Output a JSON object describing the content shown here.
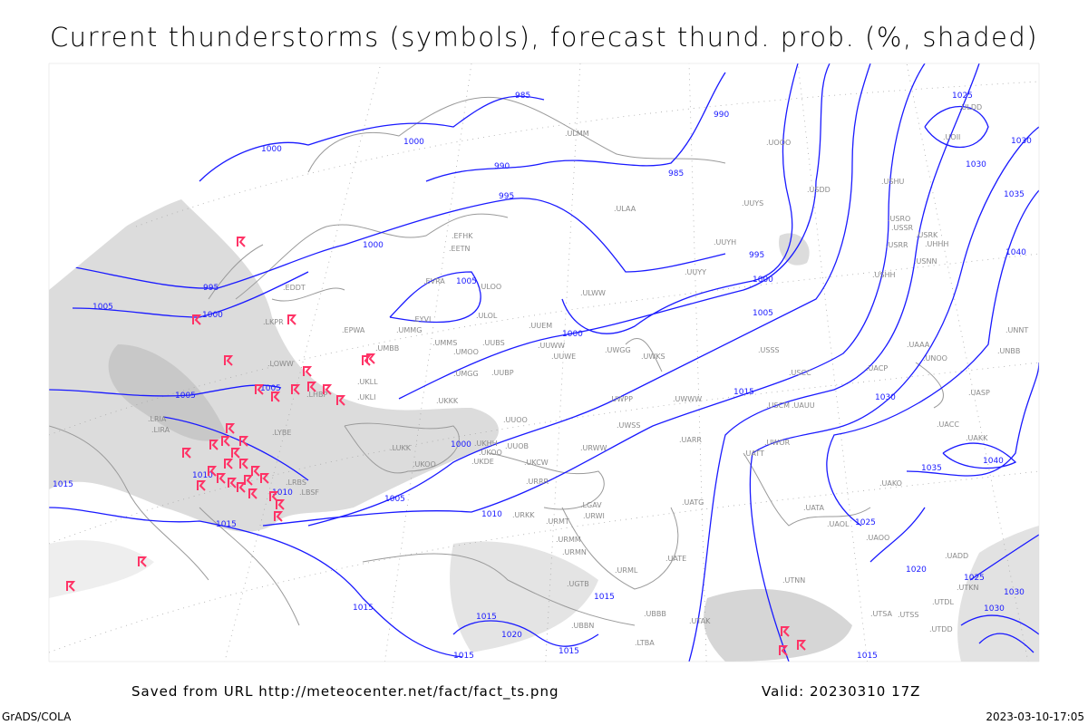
{
  "title": "Current thunderstorms (symbols), forecast thund. prob. (%, shaded)",
  "footer": {
    "source": "Saved from URL http://meteocenter.net/fact/fact_ts.png",
    "valid": "Valid: 20230310 17Z",
    "software": "GrADS/COLA",
    "timestamp": "2023-03-10-17:05"
  },
  "colors": {
    "isobar": "#1a1aff",
    "thunderstorm": "#ff3366",
    "shading": "#d9d9d9",
    "coastline": "#9a9a9a"
  },
  "isobar_labels": [
    "985",
    "990",
    "985",
    "1000",
    "990",
    "995",
    "1000",
    "1000",
    "995",
    "1005",
    "1000",
    "995",
    "1000",
    "1005",
    "1000",
    "1005",
    "1005",
    "1005",
    "1000",
    "1005",
    "1010",
    "1010",
    "1010",
    "1015",
    "1015",
    "1015",
    "1020",
    "1025",
    "1030",
    "1035",
    "1040",
    "1035",
    "1040",
    "1030",
    "1030",
    "1025",
    "1015",
    "1020",
    "1015",
    "1015",
    "1015",
    "1015",
    "1025",
    "1030",
    "1030",
    "1015"
  ],
  "stations": [
    "ULAA",
    "UUYH",
    "UUYY",
    "ULWW",
    "EVRA",
    "ULOO",
    "ULOL",
    "EYVI",
    "UMMG",
    "EPWA",
    "UMBB",
    "UMMS",
    "UMOO",
    "UUBS",
    "UUEM",
    "UUWW",
    "UWGG",
    "UWKS",
    "UMGG",
    "UUBP",
    "UKLL",
    "UKLI",
    "UKKK",
    "UUOO",
    "UUOB",
    "UKHH",
    "UKOO",
    "UKDE",
    "UKCW",
    "URRR",
    "LUKK",
    "UKOO",
    "LRBS",
    "LBSF",
    "LRIA",
    "LYBE",
    "UWPP",
    "UWWW",
    "UWSS",
    "URWW",
    "UARR",
    "USSS",
    "USCC",
    "USCM",
    "UAUU",
    "UATT",
    "UWOR",
    "URMT",
    "URMM",
    "URMN",
    "URML",
    "UATE",
    "UBBB",
    "UTAK",
    "UTNN",
    "UAAA",
    "UACC",
    "UAKK",
    "UASP",
    "UAKO",
    "UATA",
    "UAOL",
    "UAOO",
    "UADD",
    "UNNT",
    "UNBB",
    "USSR",
    "USRR",
    "USNN",
    "USHH",
    "USHU",
    "USDD",
    "UUYS",
    "ULMM",
    "UOOO",
    "UOII",
    "ULDD",
    "EFHK",
    "EETN",
    "EDDT",
    "LKPR",
    "LOWW",
    "LHBP",
    "LIRA",
    "LGAV",
    "LTBA",
    "UGTB",
    "UBBN",
    "UTSA",
    "UTSS",
    "UTDD",
    "UTDL",
    "UTKN",
    "USRK",
    "USRO",
    "UHHH",
    "UNOO",
    "UACP",
    "UUWE",
    "UATG",
    "URWI",
    "URKK"
  ],
  "thunderstorm_symbols_count": 38
}
